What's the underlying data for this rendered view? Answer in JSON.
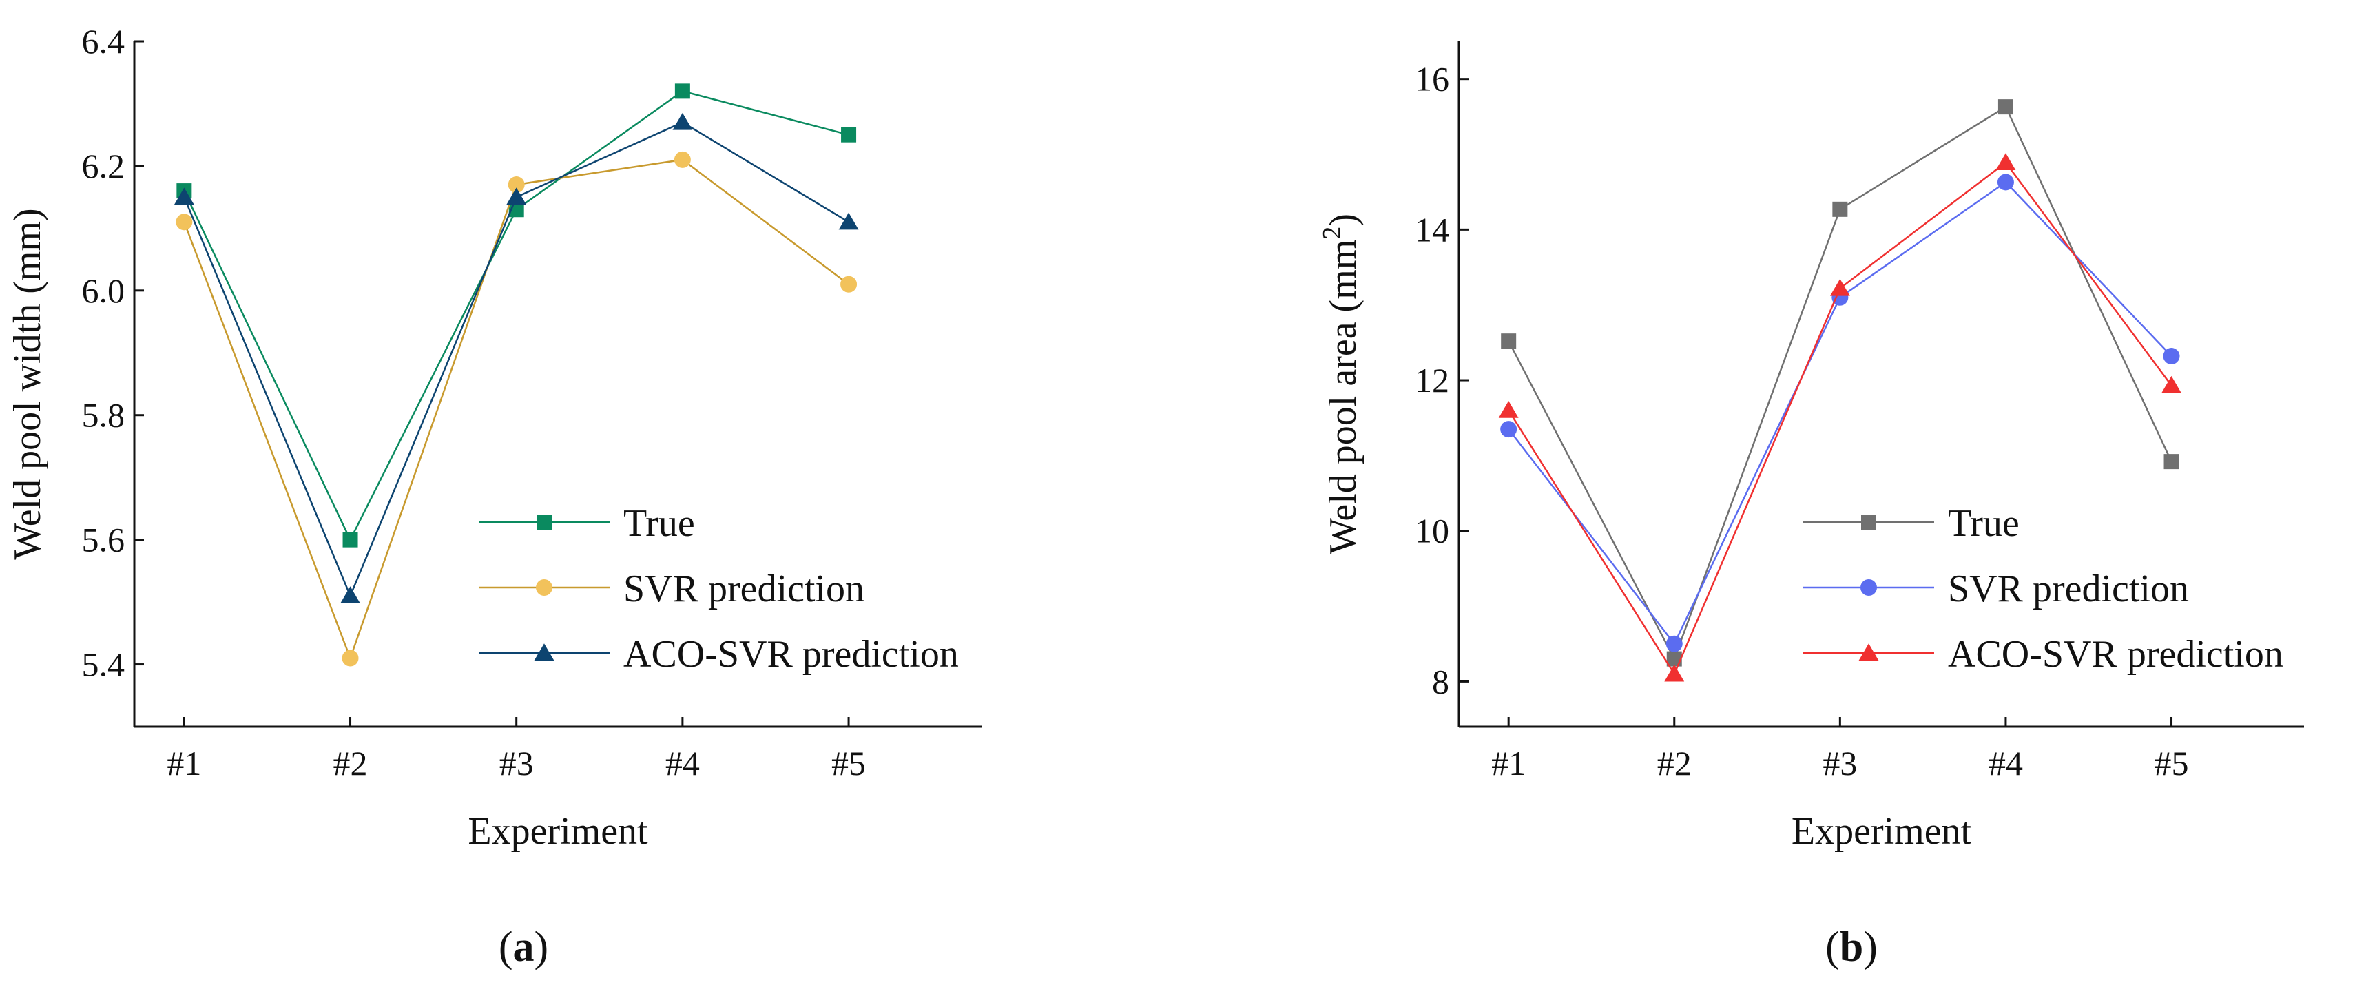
{
  "chart_data": [
    {
      "type": "line",
      "panel_label": "a",
      "xlabel": "Experiment",
      "ylabel": "Weld pool width (mm)",
      "categories": [
        "#1",
        "#2",
        "#3",
        "#4",
        "#5"
      ],
      "ylim": [
        5.3,
        6.4
      ],
      "yticks": [
        5.4,
        5.6,
        5.8,
        6.0,
        6.2,
        6.4
      ],
      "ytick_labels": [
        "5.4",
        "5.6",
        "5.8",
        "6.0",
        "6.2",
        "6.4"
      ],
      "legend_position": "bottom-right",
      "series": [
        {
          "name": "True",
          "marker": "square",
          "color": "#0a8a5f",
          "values": [
            6.16,
            5.6,
            6.13,
            6.32,
            6.25
          ]
        },
        {
          "name": "SVR prediction",
          "marker": "circle",
          "color": "#f2c25b",
          "line_color": "#c89a2e",
          "values": [
            6.11,
            5.41,
            6.17,
            6.21,
            6.01
          ]
        },
        {
          "name": "ACO-SVR prediction",
          "marker": "triangle",
          "color": "#0d4470",
          "values": [
            6.15,
            5.51,
            6.15,
            6.27,
            6.11
          ]
        }
      ]
    },
    {
      "type": "line",
      "panel_label": "b",
      "xlabel": "Experiment",
      "ylabel_pre": "Weld pool area (mm",
      "ylabel_sup": "2",
      "ylabel_post": ")",
      "categories": [
        "#1",
        "#2",
        "#3",
        "#4",
        "#5"
      ],
      "ylim": [
        7.4,
        16.5
      ],
      "yticks": [
        8,
        10,
        12,
        14,
        16
      ],
      "ytick_labels": [
        "8",
        "10",
        "12",
        "14",
        "16"
      ],
      "legend_position": "bottom-right",
      "series": [
        {
          "name": "True",
          "marker": "square",
          "color": "#707070",
          "values": [
            12.52,
            8.3,
            14.27,
            15.63,
            10.92
          ]
        },
        {
          "name": "SVR prediction",
          "marker": "circle",
          "color": "#5b6cf0",
          "values": [
            11.35,
            8.5,
            13.1,
            14.63,
            12.32
          ]
        },
        {
          "name": "ACO-SVR prediction",
          "marker": "triangle",
          "color": "#f03030",
          "values": [
            11.6,
            8.1,
            13.22,
            14.89,
            11.93
          ]
        }
      ]
    }
  ]
}
